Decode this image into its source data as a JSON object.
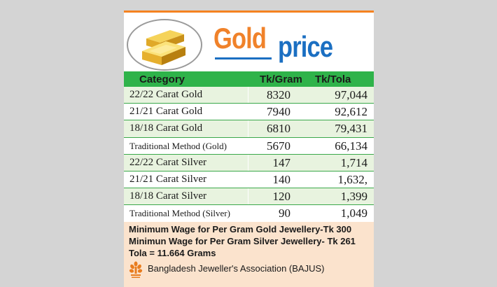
{
  "title": {
    "word1": "Gold",
    "word2": "price"
  },
  "table": {
    "headers": {
      "category": "Category",
      "per_gram": "Tk/Gram",
      "per_tola": "Tk/Tola"
    },
    "rows": [
      {
        "category": "22/22 Carat Gold",
        "gram": "8320",
        "tola": "97,044"
      },
      {
        "category": "21/21 Carat Gold",
        "gram": "7940",
        "tola": "92,612"
      },
      {
        "category": "18/18 Carat Gold",
        "gram": "6810",
        "tola": "79,431"
      },
      {
        "category": "Traditional Method (Gold)",
        "gram": "5670",
        "tola": "66,134"
      },
      {
        "category": "22/22 Carat Silver",
        "gram": "147",
        "tola": "1,714"
      },
      {
        "category": "21/21 Carat Silver",
        "gram": "140",
        "tola": "1,632,"
      },
      {
        "category": "18/18 Carat Silver",
        "gram": "120",
        "tola": "1,399"
      },
      {
        "category": "Traditional Method (Silver)",
        "gram": "90",
        "tola": "1,049"
      }
    ]
  },
  "notes": {
    "line1": "Minimum Wage for Per Gram Gold Jewellery-Tk 300",
    "line2": "Minimun Wage for Per Gram Silver Jewellery- Tk 261",
    "line3": "Tola = 11.664 Grams",
    "association": "Bangladesh Jeweller's Association (BAJUS)"
  },
  "colors": {
    "page_bg": "#d4d4d4",
    "top_rule": "#f58220",
    "gold_word": "#f0822a",
    "price_word": "#1b6fc2",
    "header_bg": "#2fb34a",
    "row_a": "#ffffff",
    "row_b": "#e8f3df",
    "row_line": "#3aa84a",
    "notes_bg": "#fbe3cd",
    "bajus_logo": "#e87c1e"
  },
  "icons": {
    "logo": "gold-bars-icon",
    "bajus": "bajus-logo-icon"
  }
}
